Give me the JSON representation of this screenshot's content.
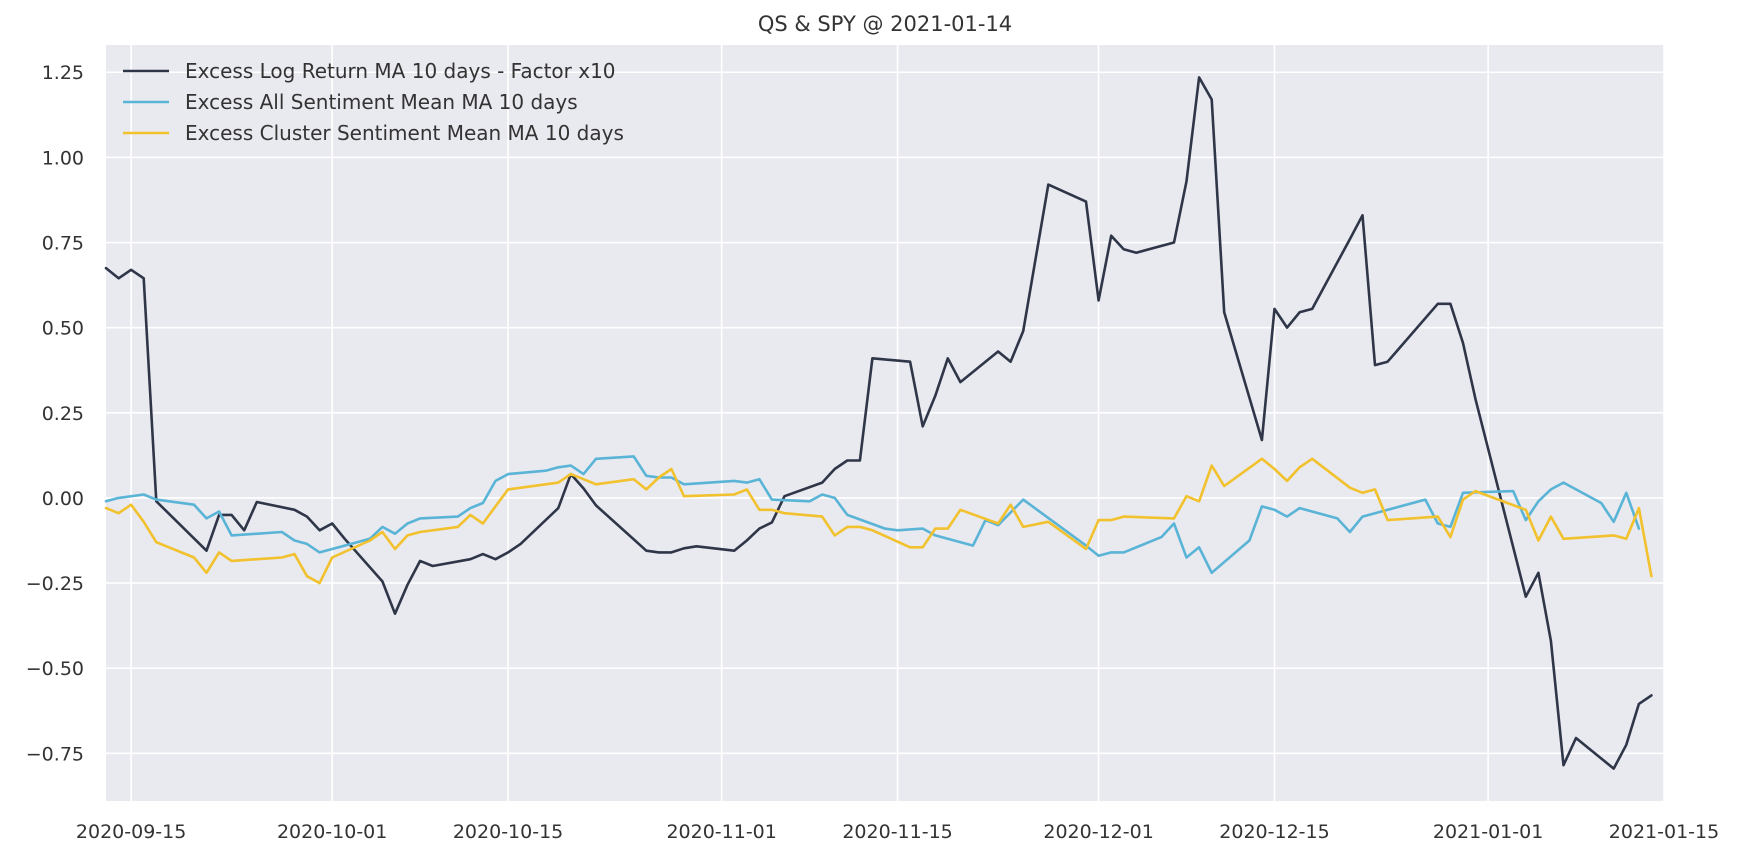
{
  "chart_data": {
    "type": "line",
    "title": "QS & SPY @ 2021-01-14",
    "xlabel": "",
    "ylabel": "",
    "xlim": [
      "2020-09-13",
      "2021-01-15"
    ],
    "ylim": [
      -0.89,
      1.33
    ],
    "grid": true,
    "legend_position": "top-left",
    "background_color": "#e9e9f0",
    "x_tick_labels": [
      "2020-09-15",
      "2020-10-01",
      "2020-10-15",
      "2020-11-01",
      "2020-11-15",
      "2020-12-01",
      "2020-12-15",
      "2021-01-01",
      "2021-01-15"
    ],
    "y_tick_values": [
      -0.75,
      -0.5,
      -0.25,
      0.0,
      0.25,
      0.5,
      0.75,
      1.0,
      1.25
    ],
    "y_tick_labels": [
      "−0.75",
      "−0.50",
      "−0.25",
      "0.00",
      "0.25",
      "0.50",
      "0.75",
      "1.00",
      "1.25"
    ],
    "series": [
      {
        "name": "Excess Log Return MA 10 days - Factor x10",
        "color": "#2e3648",
        "points": [
          [
            "2020-09-13",
            0.675
          ],
          [
            "2020-09-14",
            0.645
          ],
          [
            "2020-09-15",
            0.67
          ],
          [
            "2020-09-16",
            0.645
          ],
          [
            "2020-09-17",
            -0.01
          ],
          [
            "2020-09-21",
            -0.155
          ],
          [
            "2020-09-22",
            -0.05
          ],
          [
            "2020-09-23",
            -0.05
          ],
          [
            "2020-09-24",
            -0.095
          ],
          [
            "2020-09-25",
            -0.012
          ],
          [
            "2020-09-28",
            -0.035
          ],
          [
            "2020-09-29",
            -0.055
          ],
          [
            "2020-09-30",
            -0.095
          ],
          [
            "2020-10-01",
            -0.075
          ],
          [
            "2020-10-02",
            -0.12
          ],
          [
            "2020-10-05",
            -0.245
          ],
          [
            "2020-10-06",
            -0.34
          ],
          [
            "2020-10-07",
            -0.255
          ],
          [
            "2020-10-08",
            -0.185
          ],
          [
            "2020-10-09",
            -0.2
          ],
          [
            "2020-10-12",
            -0.18
          ],
          [
            "2020-10-13",
            -0.165
          ],
          [
            "2020-10-14",
            -0.18
          ],
          [
            "2020-10-15",
            -0.16
          ],
          [
            "2020-10-16",
            -0.135
          ],
          [
            "2020-10-19",
            -0.03
          ],
          [
            "2020-10-20",
            0.07
          ],
          [
            "2020-10-21",
            0.028
          ],
          [
            "2020-10-22",
            -0.022
          ],
          [
            "2020-10-26",
            -0.155
          ],
          [
            "2020-10-27",
            -0.16
          ],
          [
            "2020-10-28",
            -0.16
          ],
          [
            "2020-10-29",
            -0.148
          ],
          [
            "2020-10-30",
            -0.142
          ],
          [
            "2020-11-02",
            -0.155
          ],
          [
            "2020-11-03",
            -0.125
          ],
          [
            "2020-11-04",
            -0.09
          ],
          [
            "2020-11-05",
            -0.072
          ],
          [
            "2020-11-06",
            0.005
          ],
          [
            "2020-11-09",
            0.045
          ],
          [
            "2020-11-10",
            0.085
          ],
          [
            "2020-11-11",
            0.11
          ],
          [
            "2020-11-12",
            0.11
          ],
          [
            "2020-11-13",
            0.41
          ],
          [
            "2020-11-16",
            0.4
          ],
          [
            "2020-11-17",
            0.21
          ],
          [
            "2020-11-18",
            0.3
          ],
          [
            "2020-11-19",
            0.41
          ],
          [
            "2020-11-20",
            0.34
          ],
          [
            "2020-11-23",
            0.43
          ],
          [
            "2020-11-24",
            0.4
          ],
          [
            "2020-11-25",
            0.49
          ],
          [
            "2020-11-27",
            0.92
          ],
          [
            "2020-11-30",
            0.87
          ],
          [
            "2020-12-01",
            0.58
          ],
          [
            "2020-12-02",
            0.77
          ],
          [
            "2020-12-03",
            0.73
          ],
          [
            "2020-12-04",
            0.72
          ],
          [
            "2020-12-07",
            0.75
          ],
          [
            "2020-12-08",
            0.93
          ],
          [
            "2020-12-09",
            1.235
          ],
          [
            "2020-12-10",
            1.17
          ],
          [
            "2020-12-11",
            0.545
          ],
          [
            "2020-12-14",
            0.17
          ],
          [
            "2020-12-15",
            0.555
          ],
          [
            "2020-12-16",
            0.5
          ],
          [
            "2020-12-17",
            0.545
          ],
          [
            "2020-12-18",
            0.555
          ],
          [
            "2020-12-21",
            0.76
          ],
          [
            "2020-12-22",
            0.83
          ],
          [
            "2020-12-23",
            0.39
          ],
          [
            "2020-12-24",
            0.4
          ],
          [
            "2020-12-28",
            0.57
          ],
          [
            "2020-12-29",
            0.57
          ],
          [
            "2020-12-30",
            0.455
          ],
          [
            "2020-12-31",
            0.29
          ],
          [
            "2021-01-04",
            -0.29
          ],
          [
            "2021-01-05",
            -0.22
          ],
          [
            "2021-01-06",
            -0.42
          ],
          [
            "2021-01-07",
            -0.785
          ],
          [
            "2021-01-08",
            -0.705
          ],
          [
            "2021-01-11",
            -0.795
          ],
          [
            "2021-01-12",
            -0.725
          ],
          [
            "2021-01-13",
            -0.605
          ],
          [
            "2021-01-14",
            -0.58
          ]
        ]
      },
      {
        "name": "Excess All Sentiment Mean MA 10 days",
        "color": "#5ab4d6",
        "points": [
          [
            "2020-09-13",
            -0.01
          ],
          [
            "2020-09-14",
            0.0
          ],
          [
            "2020-09-16",
            0.01
          ],
          [
            "2020-09-17",
            -0.005
          ],
          [
            "2020-09-20",
            -0.02
          ],
          [
            "2020-09-21",
            -0.06
          ],
          [
            "2020-09-22",
            -0.04
          ],
          [
            "2020-09-23",
            -0.11
          ],
          [
            "2020-09-27",
            -0.1
          ],
          [
            "2020-09-28",
            -0.125
          ],
          [
            "2020-09-29",
            -0.135
          ],
          [
            "2020-09-30",
            -0.16
          ],
          [
            "2020-10-01",
            -0.15
          ],
          [
            "2020-10-02",
            -0.14
          ],
          [
            "2020-10-04",
            -0.12
          ],
          [
            "2020-10-05",
            -0.085
          ],
          [
            "2020-10-06",
            -0.105
          ],
          [
            "2020-10-07",
            -0.075
          ],
          [
            "2020-10-08",
            -0.06
          ],
          [
            "2020-10-11",
            -0.055
          ],
          [
            "2020-10-12",
            -0.03
          ],
          [
            "2020-10-13",
            -0.015
          ],
          [
            "2020-10-14",
            0.05
          ],
          [
            "2020-10-15",
            0.07
          ],
          [
            "2020-10-18",
            0.08
          ],
          [
            "2020-10-19",
            0.09
          ],
          [
            "2020-10-20",
            0.095
          ],
          [
            "2020-10-21",
            0.07
          ],
          [
            "2020-10-22",
            0.115
          ],
          [
            "2020-10-25",
            0.122
          ],
          [
            "2020-10-26",
            0.065
          ],
          [
            "2020-10-27",
            0.06
          ],
          [
            "2020-10-28",
            0.06
          ],
          [
            "2020-10-29",
            0.04
          ],
          [
            "2020-11-02",
            0.05
          ],
          [
            "2020-11-03",
            0.045
          ],
          [
            "2020-11-04",
            0.055
          ],
          [
            "2020-11-05",
            -0.005
          ],
          [
            "2020-11-08",
            -0.01
          ],
          [
            "2020-11-09",
            0.01
          ],
          [
            "2020-11-10",
            0.0
          ],
          [
            "2020-11-11",
            -0.05
          ],
          [
            "2020-11-14",
            -0.09
          ],
          [
            "2020-11-15",
            -0.095
          ],
          [
            "2020-11-17",
            -0.09
          ],
          [
            "2020-11-18",
            -0.11
          ],
          [
            "2020-11-21",
            -0.14
          ],
          [
            "2020-11-22",
            -0.065
          ],
          [
            "2020-11-23",
            -0.08
          ],
          [
            "2020-11-25",
            -0.005
          ],
          [
            "2020-11-30",
            -0.14
          ],
          [
            "2020-12-01",
            -0.17
          ],
          [
            "2020-12-02",
            -0.16
          ],
          [
            "2020-12-03",
            -0.16
          ],
          [
            "2020-12-06",
            -0.115
          ],
          [
            "2020-12-07",
            -0.075
          ],
          [
            "2020-12-08",
            -0.175
          ],
          [
            "2020-12-09",
            -0.145
          ],
          [
            "2020-12-10",
            -0.22
          ],
          [
            "2020-12-13",
            -0.125
          ],
          [
            "2020-12-14",
            -0.025
          ],
          [
            "2020-12-15",
            -0.035
          ],
          [
            "2020-12-16",
            -0.055
          ],
          [
            "2020-12-17",
            -0.03
          ],
          [
            "2020-12-20",
            -0.06
          ],
          [
            "2020-12-21",
            -0.1
          ],
          [
            "2020-12-22",
            -0.055
          ],
          [
            "2020-12-23",
            -0.045
          ],
          [
            "2020-12-27",
            -0.005
          ],
          [
            "2020-12-28",
            -0.075
          ],
          [
            "2020-12-29",
            -0.085
          ],
          [
            "2020-12-30",
            0.015
          ],
          [
            "2021-01-03",
            0.02
          ],
          [
            "2021-01-04",
            -0.065
          ],
          [
            "2021-01-05",
            -0.01
          ],
          [
            "2021-01-06",
            0.025
          ],
          [
            "2021-01-07",
            0.045
          ],
          [
            "2021-01-10",
            -0.015
          ],
          [
            "2021-01-11",
            -0.07
          ],
          [
            "2021-01-12",
            0.015
          ],
          [
            "2021-01-13",
            -0.09
          ]
        ]
      },
      {
        "name": "Excess Cluster Sentiment Mean MA 10 days",
        "color": "#f2c12e",
        "points": [
          [
            "2020-09-13",
            -0.03
          ],
          [
            "2020-09-14",
            -0.045
          ],
          [
            "2020-09-15",
            -0.02
          ],
          [
            "2020-09-16",
            -0.07
          ],
          [
            "2020-09-17",
            -0.13
          ],
          [
            "2020-09-20",
            -0.175
          ],
          [
            "2020-09-21",
            -0.22
          ],
          [
            "2020-09-22",
            -0.16
          ],
          [
            "2020-09-23",
            -0.185
          ],
          [
            "2020-09-27",
            -0.175
          ],
          [
            "2020-09-28",
            -0.165
          ],
          [
            "2020-09-29",
            -0.23
          ],
          [
            "2020-09-30",
            -0.25
          ],
          [
            "2020-10-01",
            -0.175
          ],
          [
            "2020-10-04",
            -0.125
          ],
          [
            "2020-10-05",
            -0.1
          ],
          [
            "2020-10-06",
            -0.15
          ],
          [
            "2020-10-07",
            -0.11
          ],
          [
            "2020-10-08",
            -0.1
          ],
          [
            "2020-10-11",
            -0.085
          ],
          [
            "2020-10-12",
            -0.05
          ],
          [
            "2020-10-13",
            -0.075
          ],
          [
            "2020-10-14",
            -0.025
          ],
          [
            "2020-10-15",
            0.025
          ],
          [
            "2020-10-18",
            0.04
          ],
          [
            "2020-10-19",
            0.045
          ],
          [
            "2020-10-20",
            0.07
          ],
          [
            "2020-10-21",
            0.055
          ],
          [
            "2020-10-22",
            0.04
          ],
          [
            "2020-10-25",
            0.055
          ],
          [
            "2020-10-26",
            0.025
          ],
          [
            "2020-10-27",
            0.06
          ],
          [
            "2020-10-28",
            0.085
          ],
          [
            "2020-10-29",
            0.005
          ],
          [
            "2020-11-02",
            0.01
          ],
          [
            "2020-11-03",
            0.025
          ],
          [
            "2020-11-04",
            -0.035
          ],
          [
            "2020-11-05",
            -0.035
          ],
          [
            "2020-11-06",
            -0.045
          ],
          [
            "2020-11-09",
            -0.055
          ],
          [
            "2020-11-10",
            -0.11
          ],
          [
            "2020-11-11",
            -0.085
          ],
          [
            "2020-11-12",
            -0.085
          ],
          [
            "2020-11-13",
            -0.095
          ],
          [
            "2020-11-16",
            -0.145
          ],
          [
            "2020-11-17",
            -0.145
          ],
          [
            "2020-11-18",
            -0.09
          ],
          [
            "2020-11-19",
            -0.09
          ],
          [
            "2020-11-20",
            -0.035
          ],
          [
            "2020-11-23",
            -0.075
          ],
          [
            "2020-11-24",
            -0.02
          ],
          [
            "2020-11-25",
            -0.085
          ],
          [
            "2020-11-27",
            -0.07
          ],
          [
            "2020-11-30",
            -0.15
          ],
          [
            "2020-12-01",
            -0.065
          ],
          [
            "2020-12-02",
            -0.065
          ],
          [
            "2020-12-03",
            -0.055
          ],
          [
            "2020-12-07",
            -0.06
          ],
          [
            "2020-12-08",
            0.005
          ],
          [
            "2020-12-09",
            -0.01
          ],
          [
            "2020-12-10",
            0.095
          ],
          [
            "2020-12-11",
            0.035
          ],
          [
            "2020-12-14",
            0.115
          ],
          [
            "2020-12-15",
            0.085
          ],
          [
            "2020-12-16",
            0.05
          ],
          [
            "2020-12-17",
            0.09
          ],
          [
            "2020-12-18",
            0.115
          ],
          [
            "2020-12-21",
            0.03
          ],
          [
            "2020-12-22",
            0.015
          ],
          [
            "2020-12-23",
            0.025
          ],
          [
            "2020-12-24",
            -0.065
          ],
          [
            "2020-12-28",
            -0.055
          ],
          [
            "2020-12-29",
            -0.115
          ],
          [
            "2020-12-30",
            -0.005
          ],
          [
            "2020-12-31",
            0.02
          ],
          [
            "2021-01-04",
            -0.035
          ],
          [
            "2021-01-05",
            -0.125
          ],
          [
            "2021-01-06",
            -0.055
          ],
          [
            "2021-01-07",
            -0.12
          ],
          [
            "2021-01-11",
            -0.11
          ],
          [
            "2021-01-12",
            -0.12
          ],
          [
            "2021-01-13",
            -0.03
          ],
          [
            "2021-01-14",
            -0.23
          ]
        ]
      }
    ]
  }
}
